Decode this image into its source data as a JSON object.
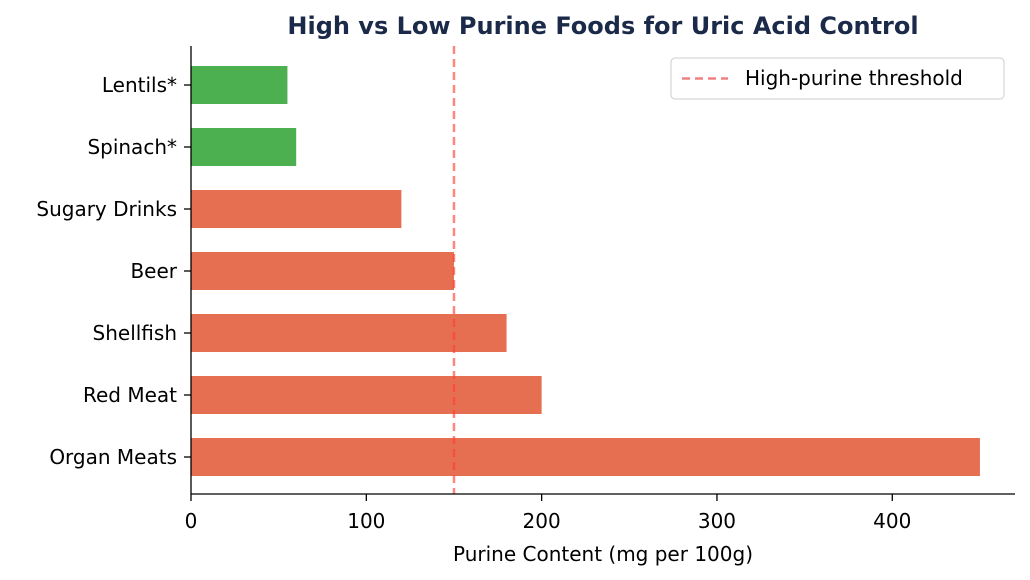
{
  "chart_data": {
    "type": "bar",
    "orientation": "horizontal",
    "title": "High vs Low Purine Foods for Uric Acid Control",
    "xlabel": "Purine Content (mg per 100g)",
    "ylabel": "",
    "xlim": [
      0,
      470
    ],
    "xticks": [
      0,
      100,
      200,
      300,
      400
    ],
    "categories": [
      "Organ Meats",
      "Red Meat",
      "Shellfish",
      "Beer",
      "Sugary Drinks",
      "Spinach*",
      "Lentils*"
    ],
    "values": [
      450,
      200,
      180,
      150,
      120,
      60,
      55
    ],
    "bar_colors": [
      "#e76f51",
      "#e76f51",
      "#e76f51",
      "#e76f51",
      "#e76f51",
      "#4caf50",
      "#4caf50"
    ],
    "threshold": {
      "value": 150,
      "label": "High-purine threshold",
      "color": "#f08080"
    },
    "grid": false,
    "legend_position": "top-right",
    "title_color": "#1b2a49"
  }
}
